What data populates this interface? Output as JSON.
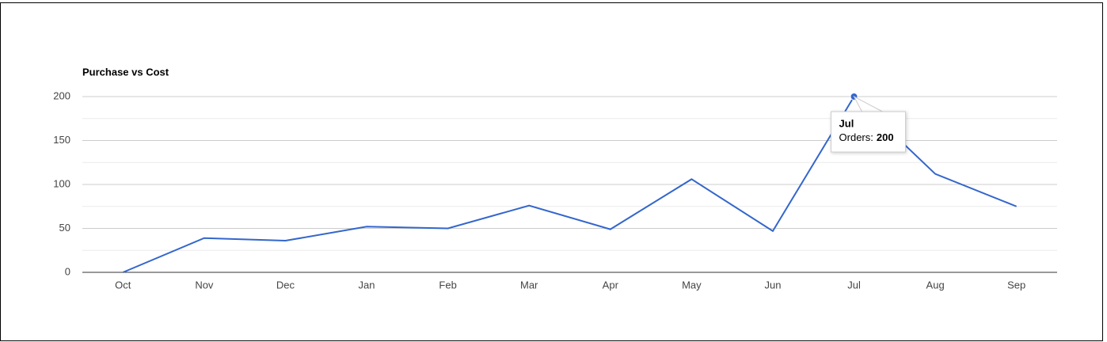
{
  "chart_data": {
    "type": "line",
    "title": "Purchase vs Cost",
    "categories": [
      "Oct",
      "Nov",
      "Dec",
      "Jan",
      "Feb",
      "Mar",
      "Apr",
      "May",
      "Jun",
      "Jul",
      "Aug",
      "Sep"
    ],
    "values": [
      0,
      39,
      36,
      52,
      50,
      76,
      49,
      106,
      47,
      200,
      112,
      75
    ],
    "color": "#3366cc",
    "ylim": [
      0,
      200
    ],
    "yticks": [
      0,
      50,
      100,
      150,
      200
    ],
    "minor_yticks": [
      25,
      75,
      125,
      175
    ],
    "grid": true,
    "tooltip": {
      "title": "Jul",
      "label": "Orders:",
      "value": 200
    }
  }
}
